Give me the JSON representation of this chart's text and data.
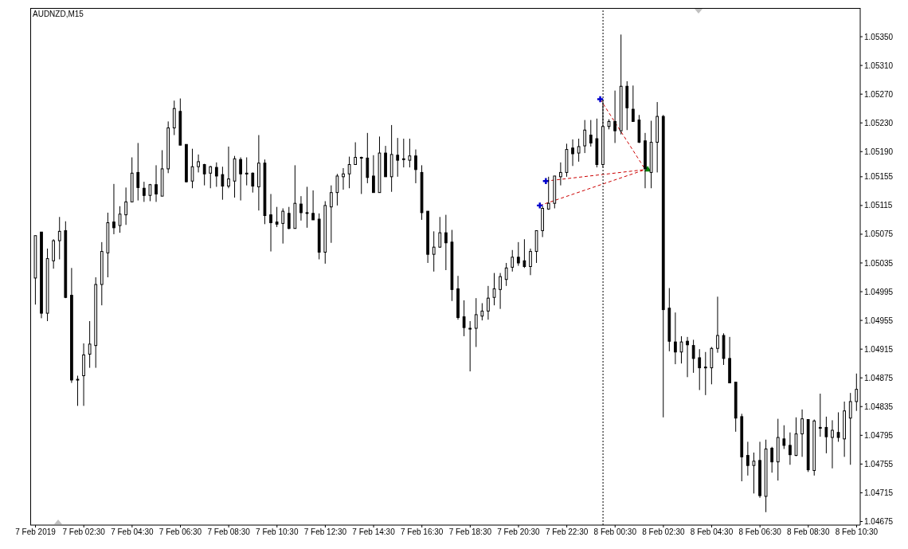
{
  "chart_data": {
    "type": "candlestick",
    "title": "AUDNZD,M15",
    "color": "#000000",
    "x": [
      "2019-02-07T00:30",
      "2019-02-07T00:45",
      "2019-02-07T01:00",
      "2019-02-07T01:15",
      "2019-02-07T01:30",
      "2019-02-07T01:45",
      "2019-02-07T02:00",
      "2019-02-07T02:15",
      "2019-02-07T02:30",
      "2019-02-07T02:45",
      "2019-02-07T03:00",
      "2019-02-07T03:15",
      "2019-02-07T03:30",
      "2019-02-07T03:45",
      "2019-02-07T04:00",
      "2019-02-07T04:15",
      "2019-02-07T04:30",
      "2019-02-07T04:45",
      "2019-02-07T05:00",
      "2019-02-07T05:15",
      "2019-02-07T05:30",
      "2019-02-07T05:45",
      "2019-02-07T06:00",
      "2019-02-07T06:15",
      "2019-02-07T06:30",
      "2019-02-07T06:45",
      "2019-02-07T07:00",
      "2019-02-07T07:15",
      "2019-02-07T07:30",
      "2019-02-07T07:45",
      "2019-02-07T08:00",
      "2019-02-07T08:15",
      "2019-02-07T08:30",
      "2019-02-07T08:45",
      "2019-02-07T09:00",
      "2019-02-07T09:15",
      "2019-02-07T09:30",
      "2019-02-07T09:45",
      "2019-02-07T10:00",
      "2019-02-07T10:15",
      "2019-02-07T10:30",
      "2019-02-07T10:45",
      "2019-02-07T11:00",
      "2019-02-07T11:15",
      "2019-02-07T11:30",
      "2019-02-07T11:45",
      "2019-02-07T12:00",
      "2019-02-07T12:15",
      "2019-02-07T12:30",
      "2019-02-07T12:45",
      "2019-02-07T13:00",
      "2019-02-07T13:15",
      "2019-02-07T13:30",
      "2019-02-07T13:45",
      "2019-02-07T14:00",
      "2019-02-07T14:15",
      "2019-02-07T14:30",
      "2019-02-07T14:45",
      "2019-02-07T15:00",
      "2019-02-07T15:15",
      "2019-02-07T15:30",
      "2019-02-07T15:45",
      "2019-02-07T16:00",
      "2019-02-07T16:15",
      "2019-02-07T16:30",
      "2019-02-07T16:45",
      "2019-02-07T17:00",
      "2019-02-07T17:15",
      "2019-02-07T17:30",
      "2019-02-07T17:45",
      "2019-02-07T18:00",
      "2019-02-07T18:15",
      "2019-02-07T18:30",
      "2019-02-07T18:45",
      "2019-02-07T19:00",
      "2019-02-07T19:15",
      "2019-02-07T19:30",
      "2019-02-07T19:45",
      "2019-02-07T20:00",
      "2019-02-07T20:15",
      "2019-02-07T20:30",
      "2019-02-07T20:45",
      "2019-02-07T21:00",
      "2019-02-07T21:15",
      "2019-02-07T21:30",
      "2019-02-07T21:45",
      "2019-02-07T22:00",
      "2019-02-07T22:15",
      "2019-02-07T22:30",
      "2019-02-07T22:45",
      "2019-02-07T23:00",
      "2019-02-07T23:15",
      "2019-02-07T23:30",
      "2019-02-07T23:45",
      "2019-02-08T00:00",
      "2019-02-08T00:15",
      "2019-02-08T00:30",
      "2019-02-08T00:45",
      "2019-02-08T01:00",
      "2019-02-08T01:15",
      "2019-02-08T01:30",
      "2019-02-08T01:45",
      "2019-02-08T02:00",
      "2019-02-08T02:15",
      "2019-02-08T02:30",
      "2019-02-08T02:45",
      "2019-02-08T03:00",
      "2019-02-08T03:15",
      "2019-02-08T03:30",
      "2019-02-08T03:45",
      "2019-02-08T04:00",
      "2019-02-08T04:15",
      "2019-02-08T04:30",
      "2019-02-08T04:45",
      "2019-02-08T05:00",
      "2019-02-08T05:15",
      "2019-02-08T05:30",
      "2019-02-08T05:45",
      "2019-02-08T06:00",
      "2019-02-08T06:15",
      "2019-02-08T06:30",
      "2019-02-08T06:45",
      "2019-02-08T07:00",
      "2019-02-08T07:15",
      "2019-02-08T07:30",
      "2019-02-08T07:45",
      "2019-02-08T08:00",
      "2019-02-08T08:15",
      "2019-02-08T08:30",
      "2019-02-08T08:45",
      "2019-02-08T09:00",
      "2019-02-08T09:15",
      "2019-02-08T09:30",
      "2019-02-08T09:45",
      "2019-02-08T10:00",
      "2019-02-08T10:15",
      "2019-02-08T10:30"
    ],
    "ohlc": [
      [
        1.05014,
        1.05073,
        1.04977,
        1.05073
      ],
      [
        1.05078,
        1.05078,
        1.04958,
        1.04965
      ],
      [
        1.04965,
        1.05055,
        1.04954,
        1.05041
      ],
      [
        1.05038,
        1.05068,
        1.05027,
        1.05066
      ],
      [
        1.05066,
        1.05099,
        1.0504,
        1.05079
      ],
      [
        1.0508,
        1.05093,
        1.04986,
        1.04987
      ],
      [
        1.0499,
        1.05028,
        1.04868,
        1.04872
      ],
      [
        1.04873,
        1.04878,
        1.04836,
        1.04872
      ],
      [
        1.04878,
        1.04923,
        1.04836,
        1.04907
      ],
      [
        1.04908,
        1.04954,
        1.04889,
        1.04922
      ],
      [
        1.0492,
        1.05015,
        1.04889,
        1.05005
      ],
      [
        1.05005,
        1.05064,
        1.04976,
        1.05051
      ],
      [
        1.05049,
        1.05105,
        1.05015,
        1.05091
      ],
      [
        1.05092,
        1.05145,
        1.05075,
        1.05084
      ],
      [
        1.05087,
        1.05114,
        1.05077,
        1.05103
      ],
      [
        1.05102,
        1.0514,
        1.05088,
        1.0512
      ],
      [
        1.0512,
        1.05182,
        1.0512,
        1.0516
      ],
      [
        1.05161,
        1.05202,
        1.05122,
        1.0514
      ],
      [
        1.05139,
        1.05148,
        1.0512,
        1.05129
      ],
      [
        1.05129,
        1.05145,
        1.05121,
        1.05144
      ],
      [
        1.05144,
        1.05171,
        1.0512,
        1.05131
      ],
      [
        1.05128,
        1.05192,
        1.05128,
        1.05166
      ],
      [
        1.05166,
        1.05232,
        1.0516,
        1.05223
      ],
      [
        1.05223,
        1.05261,
        1.05213,
        1.0525
      ],
      [
        1.05246,
        1.05264,
        1.05199,
        1.05199
      ],
      [
        1.052,
        1.052,
        1.05147,
        1.05148
      ],
      [
        1.05149,
        1.05194,
        1.05139,
        1.05169
      ],
      [
        1.05169,
        1.05186,
        1.05161,
        1.05176
      ],
      [
        1.05172,
        1.05173,
        1.05143,
        1.05159
      ],
      [
        1.0516,
        1.0517,
        1.05139,
        1.05169
      ],
      [
        1.05168,
        1.05175,
        1.05141,
        1.05156
      ],
      [
        1.05158,
        1.05169,
        1.05123,
        1.05142
      ],
      [
        1.05142,
        1.05197,
        1.05139,
        1.05152
      ],
      [
        1.05149,
        1.05184,
        1.05126,
        1.0518
      ],
      [
        1.05179,
        1.05182,
        1.05122,
        1.05159
      ],
      [
        1.0516,
        1.05182,
        1.05143,
        1.0516
      ],
      [
        1.0516,
        1.05161,
        1.05133,
        1.05142
      ],
      [
        1.05141,
        1.05213,
        1.05108,
        1.05174
      ],
      [
        1.05174,
        1.05179,
        1.05089,
        1.05101
      ],
      [
        1.05102,
        1.05131,
        1.05051,
        1.05091
      ],
      [
        1.05092,
        1.05113,
        1.05085,
        1.05089
      ],
      [
        1.0509,
        1.05111,
        1.05062,
        1.05107
      ],
      [
        1.05104,
        1.05113,
        1.05082,
        1.05083
      ],
      [
        1.05083,
        1.05171,
        1.05083,
        1.05118
      ],
      [
        1.05117,
        1.05128,
        1.05094,
        1.05105
      ],
      [
        1.05105,
        1.05141,
        1.05084,
        1.05104
      ],
      [
        1.05104,
        1.05136,
        1.05095,
        1.05095
      ],
      [
        1.05096,
        1.05104,
        1.0504,
        1.0505
      ],
      [
        1.0505,
        1.05121,
        1.05034,
        1.05115
      ],
      [
        1.05113,
        1.05143,
        1.05063,
        1.05133
      ],
      [
        1.05133,
        1.05159,
        1.05115,
        1.05156
      ],
      [
        1.05155,
        1.05167,
        1.05137,
        1.05159
      ],
      [
        1.05159,
        1.05183,
        1.05139,
        1.05172
      ],
      [
        1.05172,
        1.05203,
        1.05172,
        1.05182
      ],
      [
        1.05182,
        1.05183,
        1.05131,
        1.05182
      ],
      [
        1.05181,
        1.05216,
        1.05146,
        1.05154
      ],
      [
        1.05156,
        1.05185,
        1.05133,
        1.05133
      ],
      [
        1.05133,
        1.05211,
        1.05133,
        1.05188
      ],
      [
        1.05188,
        1.05198,
        1.05155,
        1.05155
      ],
      [
        1.05155,
        1.05227,
        1.05134,
        1.05186
      ],
      [
        1.05185,
        1.05209,
        1.05155,
        1.05178
      ],
      [
        1.0518,
        1.05208,
        1.05168,
        1.0518
      ],
      [
        1.05178,
        1.05208,
        1.05168,
        1.05184
      ],
      [
        1.05184,
        1.05193,
        1.05146,
        1.05165
      ],
      [
        1.05161,
        1.05171,
        1.05095,
        1.05105
      ],
      [
        1.05107,
        1.05107,
        1.05035,
        1.05047
      ],
      [
        1.05047,
        1.05079,
        1.05023,
        1.05057
      ],
      [
        1.05057,
        1.05099,
        1.05056,
        1.05077
      ],
      [
        1.05077,
        1.05102,
        1.05025,
        1.05063
      ],
      [
        1.05064,
        1.05081,
        1.04982,
        1.04998
      ],
      [
        1.04999,
        1.05017,
        1.04956,
        1.04959
      ],
      [
        1.0496,
        1.04983,
        1.04933,
        1.04945
      ],
      [
        1.04944,
        1.04954,
        1.04884,
        1.04943
      ],
      [
        1.04944,
        1.04986,
        1.04918,
        1.04963
      ],
      [
        1.04961,
        1.04979,
        1.04955,
        1.04968
      ],
      [
        1.04968,
        1.05003,
        1.04956,
        1.04986
      ],
      [
        1.04987,
        1.05021,
        1.04976,
        1.04999
      ],
      [
        1.04998,
        1.05021,
        1.04971,
        1.05016
      ],
      [
        1.05012,
        1.05035,
        1.05003,
        1.05028
      ],
      [
        1.05029,
        1.05053,
        1.05023,
        1.05043
      ],
      [
        1.05043,
        1.05064,
        1.05031,
        1.05035
      ],
      [
        1.05038,
        1.05068,
        1.05028,
        1.0503
      ],
      [
        1.0503,
        1.05055,
        1.05018,
        1.05051
      ],
      [
        1.05051,
        1.0508,
        1.05035,
        1.0508
      ],
      [
        1.0508,
        1.05114,
        1.05071,
        1.05111
      ],
      [
        1.0511,
        1.05155,
        1.05109,
        1.05118
      ],
      [
        1.05118,
        1.05156,
        1.05111,
        1.05156
      ],
      [
        1.05155,
        1.05175,
        1.05143,
        1.05161
      ],
      [
        1.05161,
        1.05201,
        1.05155,
        1.05193
      ],
      [
        1.05195,
        1.05207,
        1.0517,
        1.05187
      ],
      [
        1.05188,
        1.05208,
        1.05176,
        1.05197
      ],
      [
        1.05198,
        1.05234,
        1.05188,
        1.0522
      ],
      [
        1.05213,
        1.05234,
        1.05197,
        1.05202
      ],
      [
        1.05208,
        1.05236,
        1.05168,
        1.05172
      ],
      [
        1.05172,
        1.05262,
        1.05168,
        1.05225
      ],
      [
        1.05225,
        1.05235,
        1.05221,
        1.05232
      ],
      [
        1.05232,
        1.05275,
        1.05202,
        1.05219
      ],
      [
        1.05219,
        1.05353,
        1.05214,
        1.05281
      ],
      [
        1.05281,
        1.05288,
        1.0522,
        1.05251
      ],
      [
        1.05249,
        1.05282,
        1.05232,
        1.05232
      ],
      [
        1.05234,
        1.05241,
        1.05202,
        1.05203
      ],
      [
        1.05205,
        1.05216,
        1.05139,
        1.05166
      ],
      [
        1.05161,
        1.05233,
        1.05139,
        1.05203
      ],
      [
        1.05203,
        1.05259,
        1.05161,
        1.05239
      ],
      [
        1.05239,
        1.05241,
        1.0482,
        1.0497
      ],
      [
        1.04972,
        1.05,
        1.04912,
        1.04926
      ],
      [
        1.04925,
        1.04966,
        1.04894,
        1.04911
      ],
      [
        1.04911,
        1.04933,
        1.04895,
        1.04925
      ],
      [
        1.04926,
        1.04932,
        1.04876,
        1.04921
      ],
      [
        1.0492,
        1.04928,
        1.04882,
        1.04902
      ],
      [
        1.04903,
        1.04915,
        1.04858,
        1.04889
      ],
      [
        1.0489,
        1.04911,
        1.04851,
        1.0489
      ],
      [
        1.04889,
        1.04918,
        1.04866,
        1.04916
      ],
      [
        1.04916,
        1.04988,
        1.0491,
        1.04934
      ],
      [
        1.04934,
        1.04937,
        1.04893,
        1.04902
      ],
      [
        1.04902,
        1.04932,
        1.04868,
        1.04868
      ],
      [
        1.04869,
        1.04869,
        1.048,
        1.04819
      ],
      [
        1.04821,
        1.04825,
        1.04731,
        1.04765
      ],
      [
        1.04767,
        1.04786,
        1.04739,
        1.04753
      ],
      [
        1.04753,
        1.04771,
        1.04714,
        1.04759
      ],
      [
        1.0476,
        1.04786,
        1.04708,
        1.04711
      ],
      [
        1.0471,
        1.04789,
        1.04688,
        1.04776
      ],
      [
        1.04777,
        1.04779,
        1.04743,
        1.04758
      ],
      [
        1.04758,
        1.04818,
        1.04732,
        1.04792
      ],
      [
        1.0479,
        1.04809,
        1.04776,
        1.04781
      ],
      [
        1.04781,
        1.04799,
        1.04754,
        1.04768
      ],
      [
        1.04767,
        1.0482,
        1.04766,
        1.04797
      ],
      [
        1.04797,
        1.04831,
        1.04765,
        1.04818
      ],
      [
        1.04817,
        1.04817,
        1.04744,
        1.04747
      ],
      [
        1.04746,
        1.04817,
        1.04739,
        1.04815
      ],
      [
        1.04806,
        1.04853,
        1.04793,
        1.04806
      ],
      [
        1.04806,
        1.04821,
        1.0477,
        1.04793
      ],
      [
        1.04792,
        1.04816,
        1.04749,
        1.04802
      ],
      [
        1.04799,
        1.04827,
        1.04786,
        1.04792
      ],
      [
        1.0479,
        1.04842,
        1.04765,
        1.04829
      ],
      [
        1.04819,
        1.04854,
        1.04754,
        1.04842
      ],
      [
        1.04842,
        1.04881,
        1.04829,
        1.04859
      ]
    ],
    "series": [
      {
        "type": "line",
        "color": "#cc0000",
        "line_style": "dashed",
        "marker": "none",
        "x": [
          "2019-02-07T23:53",
          "2019-02-08T01:45"
        ],
        "values": [
          1.05263,
          1.05165
        ]
      },
      {
        "type": "line",
        "color": "#cc0000",
        "line_style": "dashed",
        "marker": "none",
        "x": [
          "2019-02-07T21:38",
          "2019-02-08T01:45"
        ],
        "values": [
          1.05149,
          1.05165
        ]
      },
      {
        "type": "line",
        "color": "#cc0000",
        "line_style": "dashed",
        "marker": "none",
        "x": [
          "2019-02-07T21:23",
          "2019-02-08T01:45"
        ],
        "values": [
          1.05115,
          1.05165
        ]
      },
      {
        "type": "scatter",
        "color": "#0000cc",
        "marker": "cross",
        "x": [
          "2019-02-07T23:53",
          "2019-02-07T21:38",
          "2019-02-07T21:23"
        ],
        "values": [
          1.05263,
          1.05149,
          1.05115
        ]
      },
      {
        "type": "scatter",
        "color": "#008000",
        "marker": "triangle",
        "x": [
          "2019-02-08T01:51"
        ],
        "values": [
          1.05165
        ]
      }
    ],
    "ref_lines": [
      {
        "axis": "x",
        "value": "2019-02-08T00:00",
        "color": "#000000",
        "line_style": "dotted"
      }
    ],
    "xlim": [
      "2019-02-07T00:17",
      "2019-02-08T10:39"
    ],
    "xticks": [
      {
        "value": "2019-02-07T00:30",
        "label": "7 Feb 2019"
      },
      {
        "value": "2019-02-07T02:30",
        "label": "7 Feb 02:30"
      },
      {
        "value": "2019-02-07T04:30",
        "label": "7 Feb 04:30"
      },
      {
        "value": "2019-02-07T06:30",
        "label": "7 Feb 06:30"
      },
      {
        "value": "2019-02-07T08:30",
        "label": "7 Feb 08:30"
      },
      {
        "value": "2019-02-07T10:30",
        "label": "7 Feb 10:30"
      },
      {
        "value": "2019-02-07T12:30",
        "label": "7 Feb 12:30"
      },
      {
        "value": "2019-02-07T14:30",
        "label": "7 Feb 14:30"
      },
      {
        "value": "2019-02-07T16:30",
        "label": "7 Feb 16:30"
      },
      {
        "value": "2019-02-07T18:30",
        "label": "7 Feb 18:30"
      },
      {
        "value": "2019-02-07T20:30",
        "label": "7 Feb 20:30"
      },
      {
        "value": "2019-02-07T22:30",
        "label": "7 Feb 22:30"
      },
      {
        "value": "2019-02-08T00:30",
        "label": "8 Feb 00:30"
      },
      {
        "value": "2019-02-08T02:30",
        "label": "8 Feb 02:30"
      },
      {
        "value": "2019-02-08T04:30",
        "label": "8 Feb 04:30"
      },
      {
        "value": "2019-02-08T06:30",
        "label": "8 Feb 06:30"
      },
      {
        "value": "2019-02-08T08:30",
        "label": "8 Feb 08:30"
      },
      {
        "value": "2019-02-08T10:30",
        "label": "8 Feb 10:30"
      }
    ],
    "ylim": [
      1.0467,
      1.0539
    ],
    "yticks": [
      {
        "value": 1.0535,
        "label": "1.05350"
      },
      {
        "value": 1.0531,
        "label": "1.05310"
      },
      {
        "value": 1.0527,
        "label": "1.05270"
      },
      {
        "value": 1.0523,
        "label": "1.05230"
      },
      {
        "value": 1.0519,
        "label": "1.05190"
      },
      1.05155,
      1.05115,
      1.05075,
      1.05035,
      1.04995,
      1.04955,
      1.04915,
      1.04875,
      1.04835,
      1.04795,
      1.04755,
      1.04715,
      1.04675
    ]
  }
}
